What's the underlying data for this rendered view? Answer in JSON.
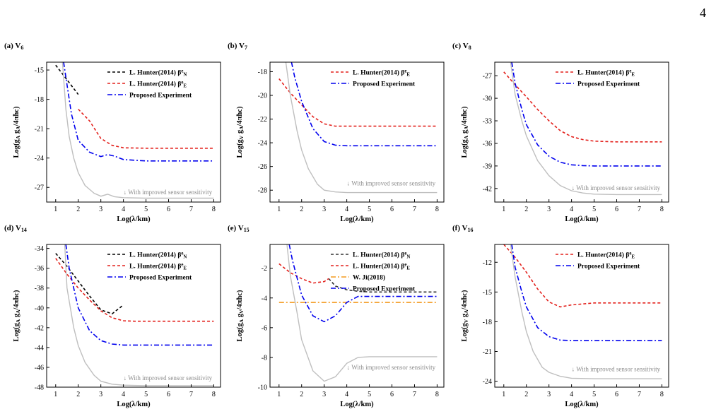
{
  "page_number": "4",
  "chart_data": [
    {
      "panel_letter": "(a)",
      "panel_title": "V",
      "panel_title_sub": "6",
      "type": "line",
      "xlabel": "Log(λ/km)",
      "ylabel": "Log(g_A g_A/4πħc)",
      "xlim": [
        0.6,
        8.3
      ],
      "ylim": [
        -28.5,
        -14.2
      ],
      "xticks": [
        1,
        2,
        3,
        4,
        5,
        6,
        7,
        8
      ],
      "yticks": [
        -15,
        -18,
        -21,
        -24,
        -27
      ],
      "annotation": "↓ With improved sensor sensitivity",
      "annotation_pos": [
        4.0,
        -27.7
      ],
      "legend_position": "top-right",
      "series": [
        {
          "name": "L. Hunter(2014)  β^e_N",
          "color": "#000000",
          "dash": "4,3",
          "legend": true,
          "x": [
            1.0,
            1.5,
            2.0
          ],
          "y": [
            -14.5,
            -16.0,
            -17.5
          ]
        },
        {
          "name": "L. Hunter(2014)  β^e_E",
          "color": "#e3211c",
          "dash": "4,3",
          "legend": true,
          "x": [
            2.0,
            2.5,
            3.0,
            3.5,
            4.0,
            5.0,
            6.0,
            7.0,
            8.0
          ],
          "y": [
            -19.0,
            -20.2,
            -22.0,
            -22.7,
            -22.95,
            -23.0,
            -23.0,
            -23.0,
            -23.0
          ]
        },
        {
          "name": "Proposed Experiment",
          "color": "#0000ee",
          "dash": "7,3,2,3",
          "legend": true,
          "x": [
            1.35,
            1.5,
            1.7,
            2.0,
            2.5,
            3.0,
            3.3,
            3.6,
            4.0,
            5.0,
            6.0,
            7.0,
            8.0
          ],
          "y": [
            -14.2,
            -16.5,
            -19.5,
            -22.2,
            -23.4,
            -23.85,
            -23.65,
            -23.8,
            -24.15,
            -24.3,
            -24.3,
            -24.3,
            -24.3
          ]
        },
        {
          "name": "",
          "color": "#bfbfbf",
          "dash": "",
          "legend": false,
          "x": [
            1.3,
            1.45,
            1.6,
            1.8,
            2.0,
            2.3,
            2.7,
            3.0,
            3.3,
            3.6,
            4.0,
            5.0,
            6.0,
            7.0,
            8.0
          ],
          "y": [
            -14.2,
            -19.0,
            -21.8,
            -24.0,
            -25.5,
            -26.8,
            -27.6,
            -27.9,
            -27.7,
            -27.95,
            -28.05,
            -28.1,
            -28.1,
            -28.1,
            -28.1
          ]
        }
      ]
    },
    {
      "panel_letter": "(b)",
      "panel_title": "V",
      "panel_title_sub": "7",
      "type": "line",
      "xlabel": "Log(λ/km)",
      "ylabel": "Log(g_V g_A/4πħc)",
      "xlim": [
        0.6,
        8.3
      ],
      "ylim": [
        -29,
        -17.2
      ],
      "xticks": [
        1,
        2,
        3,
        4,
        5,
        6,
        7,
        8
      ],
      "yticks": [
        -18,
        -20,
        -22,
        -24,
        -26,
        -28
      ],
      "annotation": "↓ With improved sensor sensitivity",
      "annotation_pos": [
        4.0,
        -27.6
      ],
      "legend_position": "top-right",
      "series": [
        {
          "name": "L. Hunter(2014)  β^e_E",
          "color": "#e3211c",
          "dash": "4,3",
          "legend": true,
          "x": [
            1.0,
            1.5,
            2.0,
            2.5,
            3.0,
            3.5,
            4.0,
            5.0,
            6.0,
            7.0,
            8.0
          ],
          "y": [
            -18.6,
            -19.8,
            -20.8,
            -21.8,
            -22.4,
            -22.6,
            -22.6,
            -22.6,
            -22.6,
            -22.6,
            -22.6
          ]
        },
        {
          "name": "Proposed Experiment",
          "color": "#0000ee",
          "dash": "7,3,2,3",
          "legend": true,
          "x": [
            1.55,
            1.7,
            2.0,
            2.5,
            3.0,
            3.5,
            4.0,
            5.0,
            6.0,
            7.0,
            8.0
          ],
          "y": [
            -17.2,
            -18.5,
            -20.5,
            -22.8,
            -23.9,
            -24.2,
            -24.25,
            -24.25,
            -24.25,
            -24.25,
            -24.25
          ]
        },
        {
          "name": "",
          "color": "#bfbfbf",
          "dash": "",
          "legend": false,
          "x": [
            1.3,
            1.5,
            1.8,
            2.0,
            2.3,
            2.7,
            3.0,
            3.5,
            4.0,
            5.0,
            6.0,
            7.0,
            8.0
          ],
          "y": [
            -17.2,
            -20.0,
            -23.0,
            -24.6,
            -26.2,
            -27.5,
            -28.0,
            -28.15,
            -28.2,
            -28.2,
            -28.2,
            -28.2,
            -28.2
          ]
        }
      ]
    },
    {
      "panel_letter": "(c)",
      "panel_title": "V",
      "panel_title_sub": "8",
      "type": "line",
      "xlabel": "Log(λ/km)",
      "ylabel": "Log(g_A g_A/4πħc)",
      "xlim": [
        0.6,
        8.3
      ],
      "ylim": [
        -43.8,
        -25.2
      ],
      "xticks": [
        1,
        2,
        3,
        4,
        5,
        6,
        7,
        8
      ],
      "yticks": [
        -27,
        -30,
        -33,
        -36,
        -39,
        -42
      ],
      "annotation": "↓ With improved sensor sensitivity",
      "annotation_pos": [
        4.0,
        -42.2
      ],
      "legend_position": "top-right",
      "series": [
        {
          "name": "L. Hunter(2014)  β^e_E",
          "color": "#e3211c",
          "dash": "4,3",
          "legend": true,
          "x": [
            1.0,
            1.5,
            2.0,
            2.5,
            3.0,
            3.5,
            4.0,
            4.5,
            5.0,
            6.0,
            7.0,
            8.0
          ],
          "y": [
            -26.5,
            -28.2,
            -29.8,
            -31.5,
            -33.0,
            -34.3,
            -35.1,
            -35.5,
            -35.7,
            -35.8,
            -35.8,
            -35.8
          ]
        },
        {
          "name": "Proposed Experiment",
          "color": "#0000ee",
          "dash": "7,3,2,3",
          "legend": true,
          "x": [
            1.35,
            1.5,
            1.8,
            2.0,
            2.5,
            3.0,
            3.5,
            4.0,
            4.5,
            5.0,
            6.0,
            7.0,
            8.0
          ],
          "y": [
            -25.2,
            -28.0,
            -31.5,
            -33.5,
            -36.2,
            -37.7,
            -38.5,
            -38.85,
            -38.95,
            -39.0,
            -39.0,
            -39.0,
            -39.0
          ]
        },
        {
          "name": "",
          "color": "#bfbfbf",
          "dash": "",
          "legend": false,
          "x": [
            1.3,
            1.5,
            1.8,
            2.0,
            2.5,
            3.0,
            3.5,
            4.0,
            4.5,
            5.0,
            6.0,
            7.0,
            8.0
          ],
          "y": [
            -25.2,
            -29.5,
            -33.0,
            -35.0,
            -38.3,
            -40.3,
            -41.6,
            -42.3,
            -42.6,
            -42.75,
            -42.8,
            -42.8,
            -42.8
          ]
        }
      ]
    },
    {
      "panel_letter": "(d)",
      "panel_title": "V",
      "panel_title_sub": "14",
      "type": "line",
      "xlabel": "Log(λ/km)",
      "ylabel": "Log(g_A g_A/4πħc)",
      "xlim": [
        0.6,
        8.3
      ],
      "ylim": [
        -48,
        -33.6
      ],
      "xticks": [
        1,
        2,
        3,
        4,
        5,
        6,
        7,
        8
      ],
      "yticks": [
        -34,
        -36,
        -38,
        -40,
        -42,
        -44,
        -46,
        -48
      ],
      "annotation": "↓ With improved sensor sensitivity",
      "annotation_pos": [
        4.0,
        -47.3
      ],
      "legend_position": "top-right",
      "series": [
        {
          "name": "L. Hunter(2014)  β^e_N",
          "color": "#000000",
          "dash": "4,3",
          "legend": true,
          "x": [
            1.0,
            1.5,
            2.0,
            2.5,
            3.0,
            3.5,
            4.0
          ],
          "y": [
            -34.5,
            -35.8,
            -37.3,
            -38.8,
            -40.2,
            -40.6,
            -39.7
          ]
        },
        {
          "name": "L. Hunter(2014)  β^e_E",
          "color": "#e3211c",
          "dash": "4,3",
          "legend": true,
          "x": [
            1.0,
            1.5,
            2.0,
            2.5,
            3.0,
            3.5,
            4.0,
            4.5,
            5.0,
            6.0,
            7.0,
            8.0
          ],
          "y": [
            -35.0,
            -36.6,
            -38.0,
            -39.2,
            -40.3,
            -41.0,
            -41.3,
            -41.35,
            -41.35,
            -41.35,
            -41.35,
            -41.35
          ]
        },
        {
          "name": "Proposed Experiment",
          "color": "#0000ee",
          "dash": "7,3,2,3",
          "legend": true,
          "x": [
            1.45,
            1.6,
            2.0,
            2.5,
            3.0,
            3.5,
            4.0,
            5.0,
            6.0,
            7.0,
            8.0
          ],
          "y": [
            -33.6,
            -36.0,
            -40.0,
            -42.3,
            -43.3,
            -43.65,
            -43.75,
            -43.75,
            -43.75,
            -43.75,
            -43.75
          ]
        },
        {
          "name": "",
          "color": "#bfbfbf",
          "dash": "",
          "legend": false,
          "x": [
            1.4,
            1.5,
            1.8,
            2.0,
            2.3,
            2.7,
            3.0,
            3.5,
            4.0,
            5.0,
            6.0,
            7.0,
            8.0
          ],
          "y": [
            -33.6,
            -38.0,
            -42.0,
            -43.8,
            -45.5,
            -46.8,
            -47.4,
            -47.7,
            -47.8,
            -47.85,
            -47.85,
            -47.85,
            -47.85
          ]
        }
      ]
    },
    {
      "panel_letter": "(e)",
      "panel_title": "V",
      "panel_title_sub": "15",
      "type": "line",
      "xlabel": "Log(λ/km)",
      "ylabel": "Log(g_A g_V/4πħc)",
      "xlim": [
        0.6,
        8.3
      ],
      "ylim": [
        -10,
        -0.4
      ],
      "xticks": [
        1,
        2,
        3,
        4,
        5,
        6,
        7,
        8
      ],
      "yticks": [
        -2,
        -4,
        -6,
        -8,
        -10
      ],
      "annotation": "↓ With improved sensor sensitivity",
      "annotation_pos": [
        4.0,
        -8.8
      ],
      "legend_position": "top-right",
      "series": [
        {
          "name": "L. Hunter(2014)  β^e_N",
          "color": "#333333",
          "dash": "4,3",
          "legend": true,
          "x": [
            3.2,
            3.5,
            4.0,
            4.5,
            5.0,
            6.0,
            7.0,
            8.0
          ],
          "y": [
            -2.7,
            -3.2,
            -3.45,
            -3.55,
            -3.6,
            -3.6,
            -3.6,
            -3.6
          ]
        },
        {
          "name": "L. Hunter(2014)  β^e_E",
          "color": "#e3211c",
          "dash": "4,3",
          "legend": true,
          "x": [
            1.0,
            1.5,
            2.0,
            2.5,
            3.0,
            3.2
          ],
          "y": [
            -1.7,
            -2.3,
            -2.7,
            -3.0,
            -2.9,
            -2.7
          ]
        },
        {
          "name": "W. Ji(2018)",
          "color": "#f39a1e",
          "dash": "7,3,2,3",
          "legend": true,
          "x": [
            1.0,
            8.0
          ],
          "y": [
            -4.3,
            -4.3
          ]
        },
        {
          "name": "Proposed Experiment",
          "color": "#0000ee",
          "dash": "7,3,2,3",
          "legend": true,
          "x": [
            1.45,
            1.6,
            2.0,
            2.5,
            3.0,
            3.5,
            4.0,
            4.5,
            5.0,
            6.0,
            7.0,
            8.0
          ],
          "y": [
            -0.4,
            -1.5,
            -3.8,
            -5.2,
            -5.6,
            -5.2,
            -4.3,
            -3.9,
            -3.9,
            -3.9,
            -3.9,
            -3.9
          ]
        },
        {
          "name": "",
          "color": "#bfbfbf",
          "dash": "",
          "legend": false,
          "x": [
            1.35,
            1.5,
            1.8,
            2.0,
            2.5,
            3.0,
            3.5,
            4.0,
            4.5,
            5.0,
            6.0,
            7.0,
            8.0
          ],
          "y": [
            -0.4,
            -2.5,
            -5.0,
            -6.8,
            -8.9,
            -9.6,
            -9.3,
            -8.4,
            -8.0,
            -7.95,
            -7.95,
            -7.95,
            -7.95
          ]
        }
      ]
    },
    {
      "panel_letter": "(f)",
      "panel_title": "V",
      "panel_title_sub": "16",
      "type": "line",
      "xlabel": "Log(λ/km)",
      "ylabel": "Log(g_V g_A/4πħc)",
      "xlim": [
        0.6,
        8.3
      ],
      "ylim": [
        -24.6,
        -10.2
      ],
      "xticks": [
        1,
        2,
        3,
        4,
        5,
        6,
        7,
        8
      ],
      "yticks": [
        -12,
        -15,
        -18,
        -21,
        -24
      ],
      "annotation": "↓ With improved sensor sensitivity",
      "annotation_pos": [
        4.0,
        -23.0
      ],
      "legend_position": "top-right",
      "series": [
        {
          "name": "L. Hunter(2014)  β^e_E",
          "color": "#e3211c",
          "dash": "4,3",
          "legend": true,
          "x": [
            1.0,
            1.5,
            2.0,
            2.5,
            3.0,
            3.5,
            4.0,
            5.0,
            6.0,
            7.0,
            8.0
          ],
          "y": [
            -10.2,
            -11.5,
            -13.0,
            -14.7,
            -16.0,
            -16.5,
            -16.3,
            -16.1,
            -16.1,
            -16.1,
            -16.1
          ]
        },
        {
          "name": "Proposed Experiment",
          "color": "#0000ee",
          "dash": "7,3,2,3",
          "legend": true,
          "x": [
            1.35,
            1.5,
            1.8,
            2.0,
            2.5,
            3.0,
            3.5,
            4.0,
            5.0,
            6.0,
            7.0,
            8.0
          ],
          "y": [
            -10.2,
            -12.5,
            -15.0,
            -16.5,
            -18.6,
            -19.5,
            -19.85,
            -19.9,
            -19.9,
            -19.9,
            -19.9,
            -19.9
          ]
        },
        {
          "name": "",
          "color": "#bfbfbf",
          "dash": "",
          "legend": false,
          "x": [
            1.3,
            1.5,
            1.8,
            2.0,
            2.3,
            2.7,
            3.0,
            3.5,
            4.0,
            5.0,
            6.0,
            7.0,
            8.0
          ],
          "y": [
            -10.2,
            -13.5,
            -17.0,
            -19.0,
            -21.0,
            -22.6,
            -23.1,
            -23.5,
            -23.7,
            -23.75,
            -23.75,
            -23.75,
            -23.75
          ]
        }
      ]
    }
  ]
}
